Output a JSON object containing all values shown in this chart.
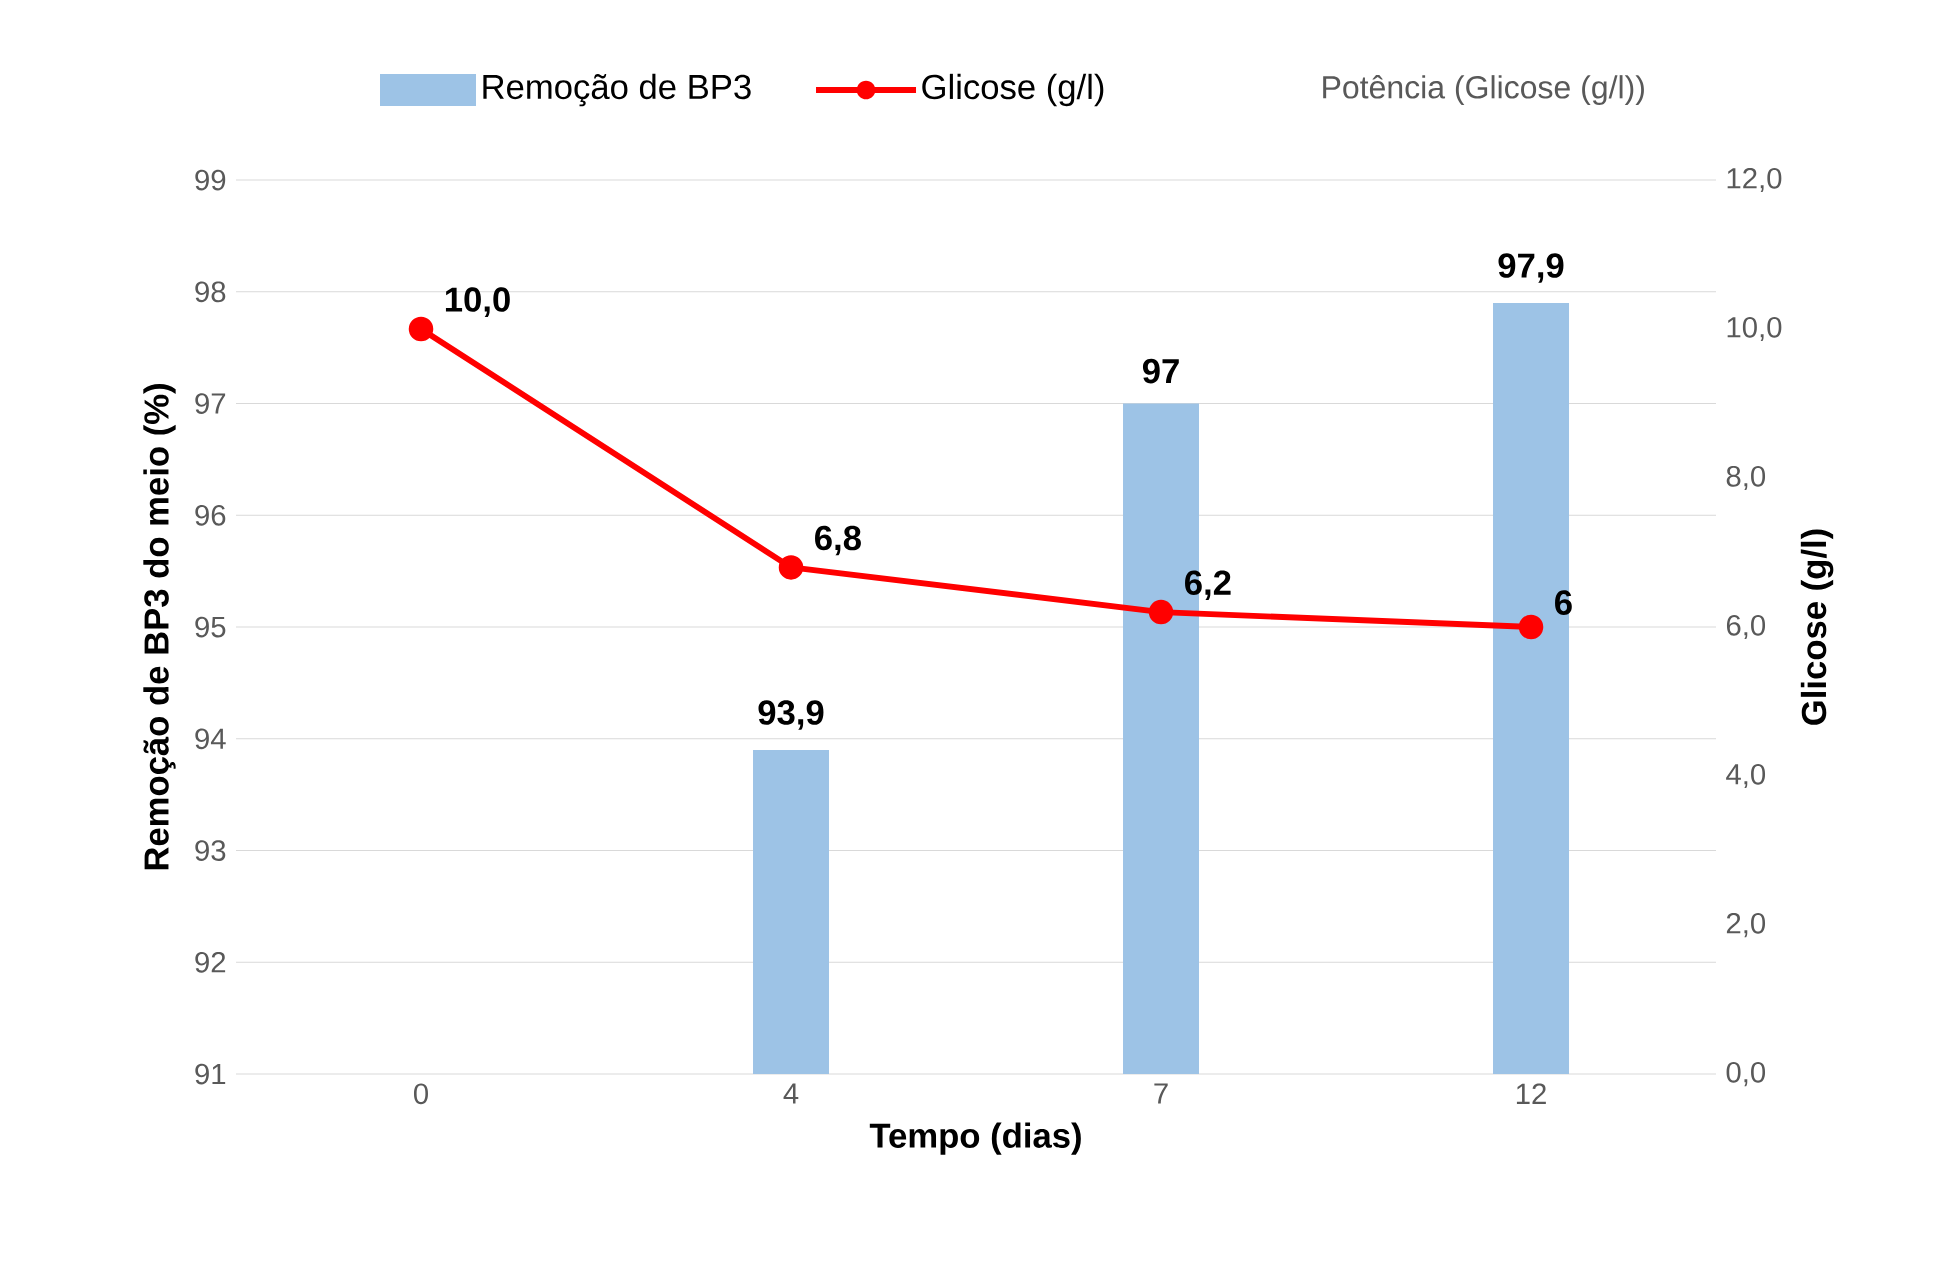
{
  "chart_data": {
    "type": "bar",
    "categories": [
      "0",
      "4",
      "7",
      "12"
    ],
    "xlabel": "Tempo (dias)",
    "ylabel": "Remoção de BP3 do meio (%)",
    "y2label": "Glicose (g/l)",
    "ylim": [
      91,
      99
    ],
    "yticks": [
      91,
      92,
      93,
      94,
      95,
      96,
      97,
      98,
      99
    ],
    "y2lim": [
      0,
      12
    ],
    "y2ticks": [
      {
        "value": 0,
        "label": "0,0"
      },
      {
        "value": 2,
        "label": "2,0"
      },
      {
        "value": 4,
        "label": "4,0"
      },
      {
        "value": 6,
        "label": "6,0"
      },
      {
        "value": 8,
        "label": "8,0"
      },
      {
        "value": 10,
        "label": "10,0"
      },
      {
        "value": 12,
        "label": "12,0"
      }
    ],
    "grid": "y",
    "legend": "top",
    "marker": "circle",
    "annotations": [
      "Potência (Glicose (g/l))"
    ],
    "series": [
      {
        "name": "Remoção de BP3",
        "color": "#9dc3e6",
        "values": [
          null,
          93.9,
          97,
          97.9
        ],
        "value_labels": [
          null,
          "93,9",
          "97",
          "97,9"
        ]
      },
      {
        "name": "Glicose (g/l)",
        "type": "line",
        "axis": "y2",
        "color": "#ff0000",
        "values": [
          10,
          6.8,
          6.2,
          6
        ],
        "value_labels": [
          "10,0",
          "6,8",
          "6,2",
          "6"
        ]
      }
    ]
  }
}
